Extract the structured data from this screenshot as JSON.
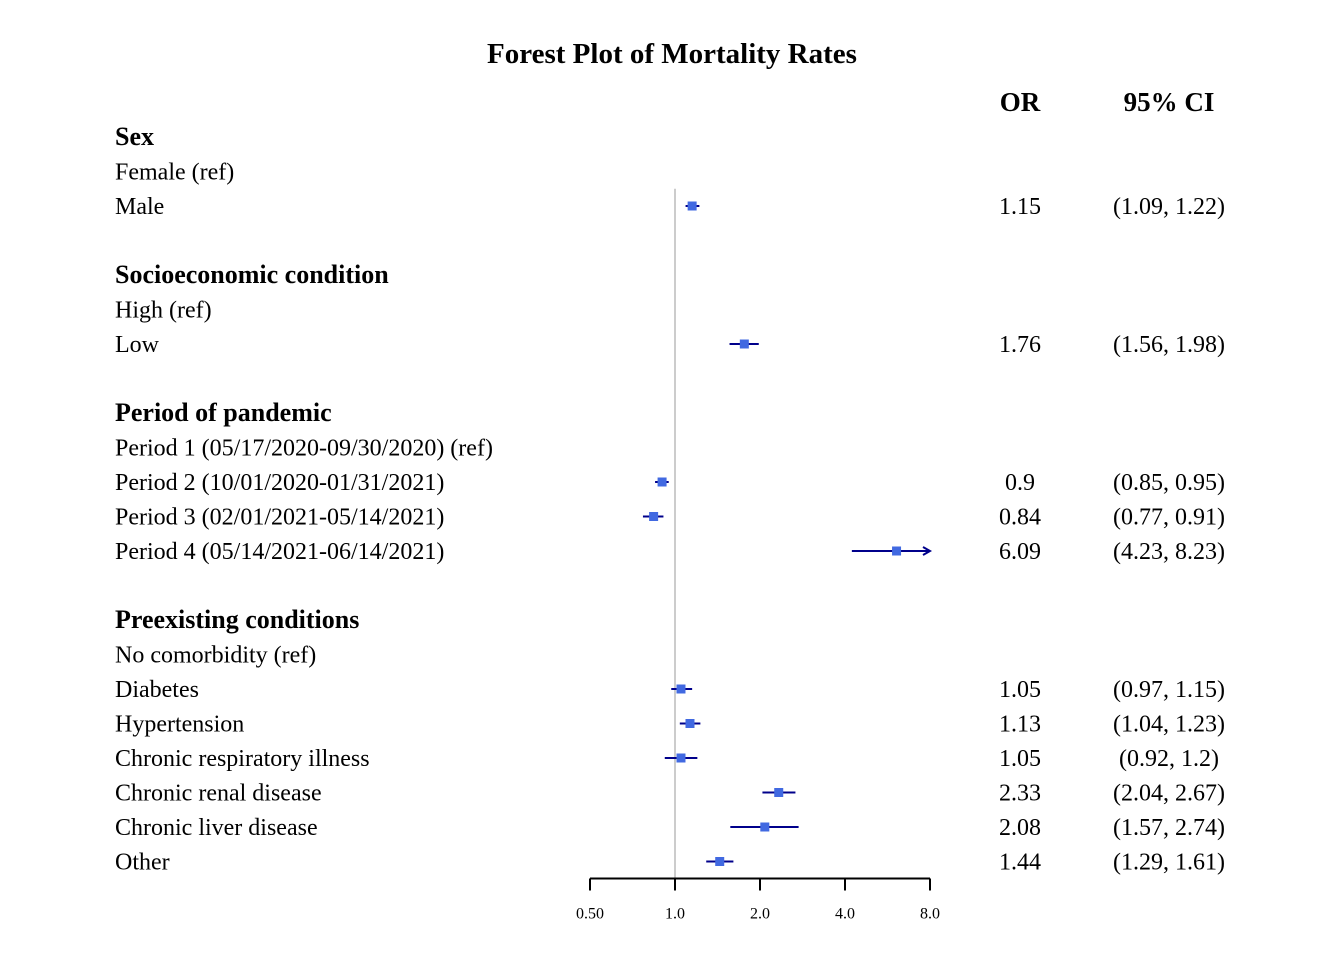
{
  "chart_data": {
    "type": "forest",
    "title": "Forest Plot of Mortality Rates",
    "columns": {
      "or": "OR",
      "ci": "95% CI"
    },
    "x_axis": {
      "scale": "log2",
      "range": [
        0.5,
        8.0
      ],
      "ticks": [
        0.5,
        1.0,
        2.0,
        4.0,
        8.0
      ],
      "tick_labels": [
        "0.50",
        "1.0",
        "2.0",
        "4.0",
        "8.0"
      ],
      "reference_line": 1.0
    },
    "colors": {
      "point": "#4169e1",
      "ci_line": "#00008b",
      "reference": "#cccccc",
      "axis": "#000000"
    },
    "rows": [
      {
        "kind": "group",
        "label": "Sex"
      },
      {
        "kind": "ref",
        "label": "Female (ref)"
      },
      {
        "kind": "item",
        "label": "Male",
        "or": 1.15,
        "lo": 1.09,
        "hi": 1.22,
        "or_text": "1.15",
        "ci_text": "(1.09, 1.22)"
      },
      {
        "kind": "blank"
      },
      {
        "kind": "group",
        "label": "Socioeconomic condition"
      },
      {
        "kind": "ref",
        "label": "High (ref)"
      },
      {
        "kind": "item",
        "label": "Low",
        "or": 1.76,
        "lo": 1.56,
        "hi": 1.98,
        "or_text": "1.76",
        "ci_text": "(1.56, 1.98)"
      },
      {
        "kind": "blank"
      },
      {
        "kind": "group",
        "label": "Period of pandemic"
      },
      {
        "kind": "ref",
        "label": "Period 1 (05/17/2020-09/30/2020) (ref)"
      },
      {
        "kind": "item",
        "label": "Period 2 (10/01/2020-01/31/2021)",
        "or": 0.9,
        "lo": 0.85,
        "hi": 0.95,
        "or_text": "0.9",
        "ci_text": "(0.85, 0.95)"
      },
      {
        "kind": "item",
        "label": "Period 3 (02/01/2021-05/14/2021)",
        "or": 0.84,
        "lo": 0.77,
        "hi": 0.91,
        "or_text": "0.84",
        "ci_text": "(0.77, 0.91)"
      },
      {
        "kind": "item",
        "label": "Period 4 (05/14/2021-06/14/2021)",
        "or": 6.09,
        "lo": 4.23,
        "hi": 8.23,
        "or_text": "6.09",
        "ci_text": "(4.23, 8.23)"
      },
      {
        "kind": "blank"
      },
      {
        "kind": "group",
        "label": "Preexisting conditions"
      },
      {
        "kind": "ref",
        "label": "No comorbidity (ref)"
      },
      {
        "kind": "item",
        "label": "Diabetes",
        "or": 1.05,
        "lo": 0.97,
        "hi": 1.15,
        "or_text": "1.05",
        "ci_text": "(0.97, 1.15)"
      },
      {
        "kind": "item",
        "label": "Hypertension",
        "or": 1.13,
        "lo": 1.04,
        "hi": 1.23,
        "or_text": "1.13",
        "ci_text": "(1.04, 1.23)"
      },
      {
        "kind": "item",
        "label": "Chronic respiratory illness",
        "or": 1.05,
        "lo": 0.92,
        "hi": 1.2,
        "or_text": "1.05",
        "ci_text": "(0.92, 1.2)"
      },
      {
        "kind": "item",
        "label": "Chronic renal disease",
        "or": 2.33,
        "lo": 2.04,
        "hi": 2.67,
        "or_text": "2.33",
        "ci_text": "(2.04, 2.67)"
      },
      {
        "kind": "item",
        "label": "Chronic liver disease",
        "or": 2.08,
        "lo": 1.57,
        "hi": 2.74,
        "or_text": "2.08",
        "ci_text": "(1.57, 2.74)"
      },
      {
        "kind": "item",
        "label": "Other",
        "or": 1.44,
        "lo": 1.29,
        "hi": 1.61,
        "or_text": "1.44",
        "ci_text": "(1.29, 1.61)"
      }
    ]
  }
}
